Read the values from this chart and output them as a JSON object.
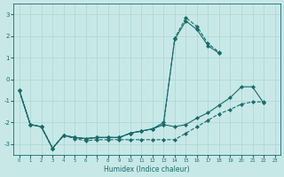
{
  "xlabel": "Humidex (Indice chaleur)",
  "xlim": [
    -0.5,
    23.5
  ],
  "ylim": [
    -3.5,
    3.5
  ],
  "yticks": [
    -3,
    -2,
    -1,
    0,
    1,
    2,
    3
  ],
  "xticks": [
    0,
    1,
    2,
    3,
    4,
    5,
    6,
    7,
    8,
    9,
    10,
    11,
    12,
    13,
    14,
    15,
    16,
    17,
    18,
    19,
    20,
    21,
    22,
    23
  ],
  "bg_color": "#c8e8e8",
  "grid_color": "#aad4d4",
  "line_color": "#1a6b6b",
  "series": [
    {
      "x": [
        0,
        1,
        2,
        3,
        4,
        5,
        6,
        7,
        8,
        9,
        10,
        11,
        12,
        13,
        14,
        15,
        16,
        17,
        18
      ],
      "y": [
        -0.5,
        -2.1,
        -2.2,
        -3.2,
        -2.6,
        -2.7,
        -2.75,
        -2.7,
        -2.7,
        -2.7,
        -2.5,
        -2.4,
        -2.3,
        -2.1,
        1.9,
        2.85,
        2.45,
        1.65,
        1.25
      ],
      "marker": "D",
      "markersize": 2.0,
      "linestyle": "--"
    },
    {
      "x": [
        0,
        1,
        2,
        3,
        4,
        5,
        6,
        7,
        8,
        9,
        10,
        11,
        12,
        13,
        14,
        15,
        16,
        17,
        18
      ],
      "y": [
        -0.5,
        -2.1,
        -2.2,
        -3.2,
        -2.6,
        -2.7,
        -2.75,
        -2.7,
        -2.7,
        -2.7,
        -2.5,
        -2.4,
        -2.3,
        -2.0,
        1.85,
        2.7,
        2.3,
        1.55,
        1.2
      ],
      "marker": "D",
      "markersize": 2.0,
      "linestyle": "-"
    },
    {
      "x": [
        0,
        1,
        2,
        3,
        4,
        5,
        6,
        7,
        8,
        9,
        10,
        11,
        12,
        13,
        14,
        15,
        16,
        17,
        18,
        19,
        20,
        21,
        22
      ],
      "y": [
        -0.5,
        -2.1,
        -2.2,
        -3.2,
        -2.6,
        -2.7,
        -2.75,
        -2.7,
        -2.7,
        -2.7,
        -2.5,
        -2.4,
        -2.3,
        -2.1,
        -2.2,
        -2.1,
        -1.8,
        -1.55,
        -1.2,
        -0.85,
        -0.35,
        -0.35,
        -1.1
      ],
      "marker": "D",
      "markersize": 2.0,
      "linestyle": "-"
    },
    {
      "x": [
        0,
        1,
        2,
        3,
        4,
        5,
        6,
        7,
        8,
        9,
        10,
        11,
        12,
        13,
        14,
        15,
        16,
        17,
        18,
        19,
        20,
        21,
        22
      ],
      "y": [
        -0.5,
        -2.1,
        -2.2,
        -3.2,
        -2.6,
        -2.75,
        -2.85,
        -2.8,
        -2.8,
        -2.8,
        -2.8,
        -2.8,
        -2.8,
        -2.8,
        -2.8,
        -2.5,
        -2.2,
        -1.9,
        -1.6,
        -1.4,
        -1.15,
        -1.05,
        -1.05
      ],
      "marker": "D",
      "markersize": 2.0,
      "linestyle": "--"
    }
  ]
}
